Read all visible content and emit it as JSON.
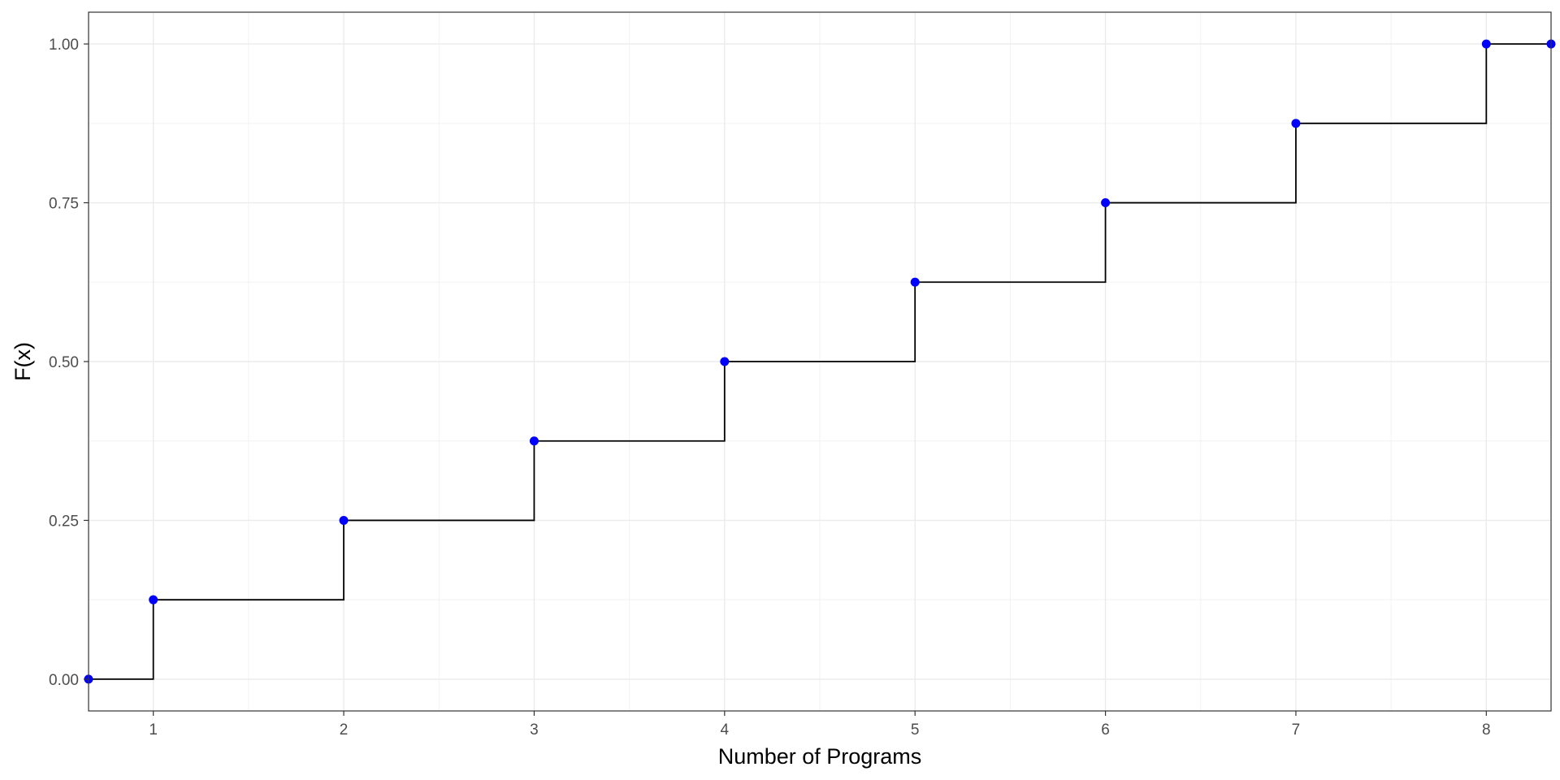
{
  "chart_data": {
    "type": "line",
    "subtype": "step-cdf",
    "title": "",
    "xlabel": "Number of Programs",
    "ylabel": "F(x)",
    "xlim": [
      0.66,
      8.34
    ],
    "ylim": [
      -0.05,
      1.05
    ],
    "x_ticks": [
      1,
      2,
      3,
      4,
      5,
      6,
      7,
      8
    ],
    "x_tick_labels": [
      "1",
      "2",
      "3",
      "4",
      "5",
      "6",
      "7",
      "8"
    ],
    "y_ticks": [
      0.0,
      0.25,
      0.5,
      0.75,
      1.0
    ],
    "y_tick_labels": [
      "0.00",
      "0.25",
      "0.50",
      "0.75",
      "1.00"
    ],
    "grid": true,
    "series": [
      {
        "points": [
          {
            "x": 0.66,
            "y": 0.0
          },
          {
            "x": 1,
            "y": 0.125
          },
          {
            "x": 2,
            "y": 0.25
          },
          {
            "x": 3,
            "y": 0.375
          },
          {
            "x": 4,
            "y": 0.5
          },
          {
            "x": 5,
            "y": 0.625
          },
          {
            "x": 6,
            "y": 0.75
          },
          {
            "x": 7,
            "y": 0.875
          },
          {
            "x": 8,
            "y": 1.0
          },
          {
            "x": 8.34,
            "y": 1.0
          }
        ],
        "line_color": "#000000",
        "point_color": "#0000FF"
      }
    ],
    "colors": {
      "background": "#FFFFFF",
      "grid_major": "#EBEBEB",
      "grid_minor": "#F2F2F2",
      "panel_border": "#333333",
      "tick_text": "#4D4D4D"
    }
  }
}
